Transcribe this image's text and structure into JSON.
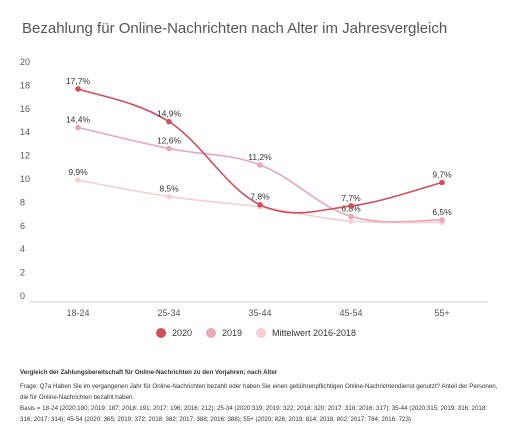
{
  "chart_data": {
    "type": "line",
    "title": "Bezahlung für Online-Nachrichten nach Alter im Jahresvergleich",
    "categories": [
      "18-24",
      "25-34",
      "35-44",
      "45-54",
      "55+"
    ],
    "yticks": [
      "0",
      "2",
      "4",
      "6",
      "8",
      "10",
      "12",
      "14",
      "16",
      "18",
      "20"
    ],
    "ylim": [
      0,
      20
    ],
    "grid": false,
    "legend_position": "bottom",
    "series": [
      {
        "name": "2020",
        "color": "#d0505a",
        "values": [
          17.7,
          14.9,
          7.8,
          7.7,
          9.7
        ],
        "labels": [
          "17,7%",
          "14,9%",
          "7,8%",
          "7,7%",
          "9,7%"
        ]
      },
      {
        "name": "2019",
        "color": "#e7a9b9",
        "values": [
          14.4,
          12.6,
          11.2,
          6.8,
          6.5
        ],
        "labels": [
          "14,4%",
          "12,6%",
          "11,2%",
          "6,8%",
          "6,5%"
        ]
      },
      {
        "name": "Mittelwert 2016-2018",
        "color": "#f6cfd2",
        "values": [
          9.9,
          8.5,
          7.6,
          6.4,
          6.3
        ],
        "labels": [
          "9,9%",
          "8,5%",
          "",
          "",
          ""
        ]
      }
    ]
  },
  "notes": {
    "heading": "Vergleich der Zahlungsbereitschaft für Online-Nachrichten zu den Vorjahren; nach Alter",
    "question": "Frage: Q7a Haben Sie im vergangenen Jahr für Online-Nachrichten bezahlt oder haben Sie einen gebührenpflichtigen Online-Nachrichtendienst genutzt? Anteil der Personen, die für Online-Nachrichten bezahlt haben.",
    "basis": "Basis = 18-24 (2020:180; 2019: 187; 2018: 191; 2017: 196; 2016: 212); 25-34 (2020:319; 2019: 322; 2018: 320; 2017: 318; 2016: 317); 35-44 (2020:315; 2019: 316; 2018: 316; 2017: 314); 45-54 (2020: 365; 2019: 372; 2018: 382; 2017: 388; 2016: 388); 55+ (2020: 826; 2019: 814; 2018: 802; 2017: 784; 2016: 723)"
  }
}
